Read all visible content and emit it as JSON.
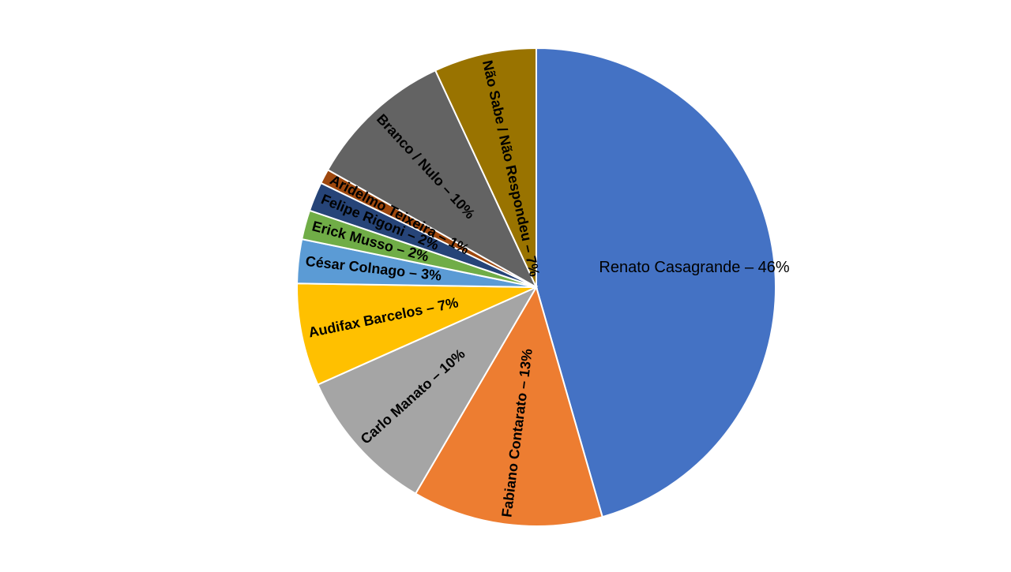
{
  "chart_data": {
    "type": "pie",
    "title": "",
    "slices": [
      {
        "label": "Renato Casagrande – 46%",
        "value": 46,
        "color": "#4472C4",
        "label_weight": "normal"
      },
      {
        "label": "Fabiano Contarato – 13%",
        "value": 13,
        "color": "#ED7D31",
        "label_weight": "bold"
      },
      {
        "label": "Carlo Manato – 10%",
        "value": 10,
        "color": "#A5A5A5",
        "label_weight": "bold"
      },
      {
        "label": "Audifax Barcelos – 7%",
        "value": 7,
        "color": "#FFC000",
        "label_weight": "bold"
      },
      {
        "label": "César Colnago – 3%",
        "value": 3,
        "color": "#5B9BD5",
        "label_weight": "bold"
      },
      {
        "label": "Erick Musso – 2%",
        "value": 2,
        "color": "#70AD47",
        "label_weight": "bold"
      },
      {
        "label": "Felipe Rigoni – 2%",
        "value": 2,
        "color": "#264478",
        "label_weight": "bold"
      },
      {
        "label": "Aridelmo Teixeira – 1%",
        "value": 1,
        "color": "#9E480E",
        "label_weight": "bold"
      },
      {
        "label": "Branco / Nulo – 10%",
        "value": 10,
        "color": "#636363",
        "label_weight": "bold"
      },
      {
        "label": "Não Sabe / Não Respondeu – 7%",
        "value": 7,
        "color": "#997300",
        "label_weight": "bold"
      }
    ]
  }
}
